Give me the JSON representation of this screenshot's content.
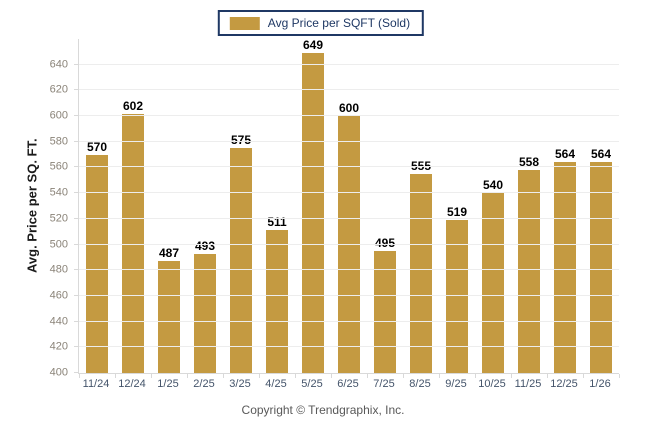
{
  "chart_data": {
    "type": "bar",
    "title": "",
    "legend": "Avg Price per SQFT (Sold)",
    "categories": [
      "11/24",
      "12/24",
      "1/25",
      "2/25",
      "3/25",
      "4/25",
      "5/25",
      "6/25",
      "7/25",
      "8/25",
      "9/25",
      "10/25",
      "11/25",
      "12/25",
      "1/26"
    ],
    "values": [
      570,
      602,
      487,
      493,
      575,
      511,
      649,
      600,
      495,
      555,
      519,
      540,
      558,
      564,
      564
    ],
    "xlabel": "",
    "ylabel": "Avg. Price per SQ. FT.",
    "ylim": [
      400,
      660
    ],
    "yticks": [
      400,
      420,
      440,
      460,
      480,
      500,
      520,
      540,
      560,
      580,
      600,
      620,
      640
    ],
    "grid": true,
    "legend_position": "top-center",
    "bar_color": "#C49A41"
  },
  "footer": {
    "copyright": "Copyright © Trendgraphix, Inc."
  },
  "colors": {
    "bar": "#C49A41",
    "legend_border": "#1F3864",
    "legend_text": "#1F3864",
    "value_label": "#000000",
    "x_tick_text": "#44546A",
    "y_tick_text": "#8A8378",
    "gridline": "#EDEDED",
    "axis_line": "#D9D9D9",
    "copyright_text": "#595959"
  }
}
